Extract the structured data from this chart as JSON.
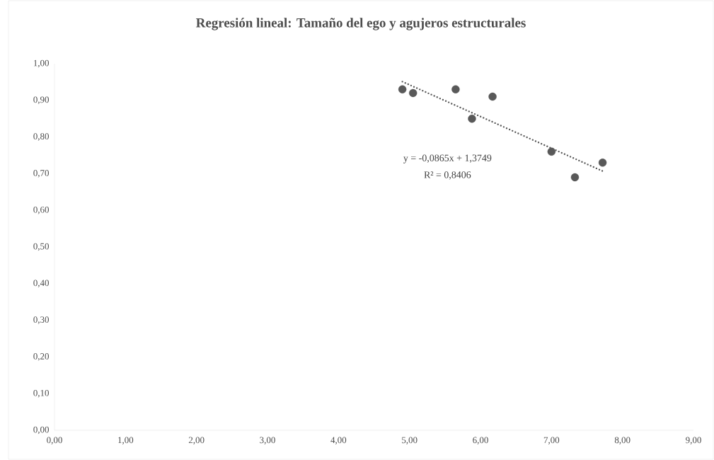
{
  "chart_data": {
    "type": "scatter",
    "title": "Regresión lineal: Tamaño del ego y agujeros estructurales",
    "annotations": [
      "y = -0,0865x + 1,3749",
      "R² = 0,8406"
    ],
    "marker": "circle",
    "grid": false,
    "xlim": [
      0,
      9
    ],
    "ylim": [
      0,
      1
    ],
    "xticks": [
      {
        "value": 0,
        "label": "0,00"
      },
      {
        "value": 1,
        "label": "1,00"
      },
      {
        "value": 2,
        "label": "2,00"
      },
      {
        "value": 3,
        "label": "3,00"
      },
      {
        "value": 4,
        "label": "4,00"
      },
      {
        "value": 5,
        "label": "5,00"
      },
      {
        "value": 6,
        "label": "6,00"
      },
      {
        "value": 7,
        "label": "7,00"
      },
      {
        "value": 8,
        "label": "8,00"
      },
      {
        "value": 9,
        "label": "9,00"
      }
    ],
    "yticks": [
      {
        "value": 0,
        "label": "0,00"
      },
      {
        "value": 0.1,
        "label": "0,10"
      },
      {
        "value": 0.2,
        "label": "0,20"
      },
      {
        "value": 0.3,
        "label": "0,30"
      },
      {
        "value": 0.4,
        "label": "0,40"
      },
      {
        "value": 0.5,
        "label": "0,50"
      },
      {
        "value": 0.6,
        "label": "0,60"
      },
      {
        "value": 0.7,
        "label": "0,70"
      },
      {
        "value": 0.8,
        "label": "0,80"
      },
      {
        "value": 0.9,
        "label": "0,90"
      },
      {
        "value": 1,
        "label": "1,00"
      }
    ],
    "series": [
      {
        "color": "#595959",
        "x": [
          4.9,
          5.05,
          5.65,
          5.88,
          6.17,
          7.0,
          7.33,
          7.72
        ],
        "values": [
          0.93,
          0.92,
          0.93,
          0.85,
          0.91,
          0.76,
          0.69,
          0.73
        ]
      },
      {
        "type": "line",
        "color": "#595959",
        "line_style": "dotted",
        "marker": "none",
        "x": [
          4.9,
          7.72
        ],
        "values": [
          0.951,
          0.707
        ]
      }
    ]
  }
}
